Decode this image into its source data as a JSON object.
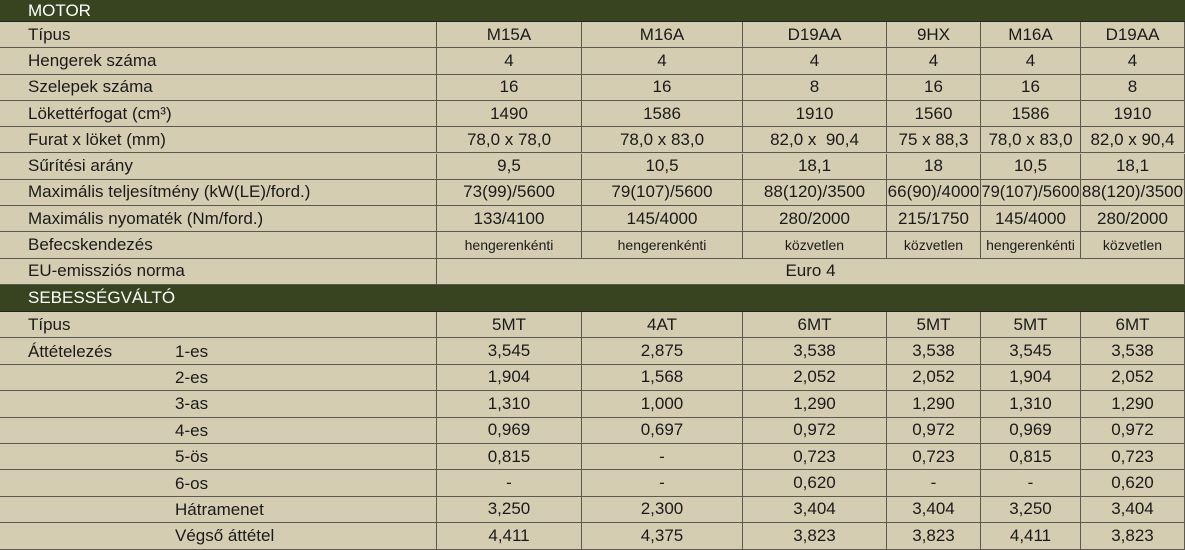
{
  "motor": {
    "title": "MOTOR",
    "rows": [
      {
        "label": "Típus",
        "values": [
          "M15A",
          "M16A",
          "D19AA",
          "9HX",
          "M16A",
          "D19AA"
        ]
      },
      {
        "label": "Hengerek száma",
        "values": [
          "4",
          "4",
          "4",
          "4",
          "4",
          "4"
        ]
      },
      {
        "label": "Szelepek száma",
        "values": [
          "16",
          "16",
          "8",
          "16",
          "16",
          "8"
        ]
      },
      {
        "label": "Lökettérfogat (cm³)",
        "values": [
          "1490",
          "1586",
          "1910",
          "1560",
          "1586",
          "1910"
        ]
      },
      {
        "label": "Furat x löket (mm)",
        "values": [
          "78,0 x 78,0",
          "78,0 x 83,0",
          "82,0 x  90,4",
          "75 x 88,3",
          "78,0 x 83,0",
          "82,0 x 90,4"
        ]
      },
      {
        "label": "Sűrítési arány",
        "values": [
          "9,5",
          "10,5",
          "18,1",
          "18",
          "10,5",
          "18,1"
        ]
      },
      {
        "label": "Maximális teljesítmény (kW(LE)/ford.)",
        "values": [
          "73(99)/5600",
          "79(107)/5600",
          "88(120)/3500",
          "66(90)/4000",
          "79(107)/5600",
          "88(120)/3500"
        ]
      },
      {
        "label": "Maximális nyomaték (Nm/ford.)",
        "values": [
          "133/4100",
          "145/4000",
          "280/2000",
          "215/1750",
          "145/4000",
          "280/2000"
        ]
      },
      {
        "label": "Befecskendezés",
        "values": [
          "hengerenkénti",
          "hengerenkénti",
          "közvetlen",
          "közvetlen",
          "hengerenkénti",
          "közvetlen"
        ]
      },
      {
        "label": "EU-emissziós norma",
        "values": [
          "Euro 4"
        ]
      }
    ]
  },
  "gearbox": {
    "title": "SEBESSÉGVÁLTÓ",
    "type_row": {
      "label": "Típus",
      "values": [
        "5MT",
        "4AT",
        "6MT",
        "5MT",
        "5MT",
        "6MT"
      ]
    },
    "ratio_label": "Áttételezés",
    "ratios": [
      {
        "gear": "1-es",
        "values": [
          "3,545",
          "2,875",
          "3,538",
          "3,538",
          "3,545",
          "3,538"
        ]
      },
      {
        "gear": "2-es",
        "values": [
          "1,904",
          "1,568",
          "2,052",
          "2,052",
          "1,904",
          "2,052"
        ]
      },
      {
        "gear": "3-as",
        "values": [
          "1,310",
          "1,000",
          "1,290",
          "1,290",
          "1,310",
          "1,290"
        ]
      },
      {
        "gear": "4-es",
        "values": [
          "0,969",
          "0,697",
          "0,972",
          "0,972",
          "0,969",
          "0,972"
        ]
      },
      {
        "gear": "5-ös",
        "values": [
          "0,815",
          "-",
          "0,723",
          "0,723",
          "0,815",
          "0,723"
        ]
      },
      {
        "gear": "6-os",
        "values": [
          "-",
          "-",
          "0,620",
          "-",
          "-",
          "0,620"
        ]
      },
      {
        "gear": "Hátramenet",
        "values": [
          "3,250",
          "2,300",
          "3,404",
          "3,404",
          "3,250",
          "3,404"
        ]
      },
      {
        "gear": "Végső áttétel",
        "values": [
          "4,411",
          "4,375",
          "3,823",
          "3,823",
          "4,411",
          "3,823"
        ]
      }
    ]
  }
}
